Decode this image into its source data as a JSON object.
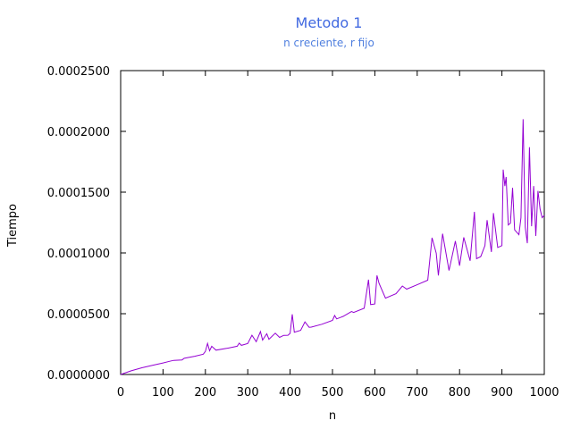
{
  "chart_data": {
    "type": "line",
    "title": "Metodo 1",
    "subtitle": "n creciente, r fijo",
    "xlabel": "n",
    "ylabel": "Tiempo",
    "xlim": [
      0,
      1000
    ],
    "ylim": [
      0,
      0.00025
    ],
    "grid": false,
    "legend": "none",
    "x_ticks": [
      0,
      100,
      200,
      300,
      400,
      500,
      600,
      700,
      800,
      900,
      1000
    ],
    "x_tick_labels": [
      "0",
      "100",
      "200",
      "300",
      "400",
      "500",
      "600",
      "700",
      "800",
      "900",
      "1000"
    ],
    "y_ticks": [
      0,
      5e-05,
      0.0001,
      0.00015,
      0.0002,
      0.00025
    ],
    "y_tick_labels": [
      "0.0000000",
      "0.0000500",
      "0.0001000",
      "0.0001500",
      "0.0002000",
      "0.0002500"
    ],
    "series_color": "#9400d3",
    "series": [
      {
        "name": "",
        "x": [
          0,
          25,
          50,
          75,
          100,
          115,
          125,
          145,
          150,
          175,
          195,
          200,
          205,
          210,
          215,
          225,
          250,
          275,
          280,
          285,
          300,
          310,
          320,
          330,
          335,
          345,
          350,
          365,
          375,
          385,
          395,
          400,
          405,
          410,
          425,
          435,
          445,
          450,
          475,
          500,
          505,
          510,
          525,
          545,
          550,
          575,
          585,
          590,
          600,
          605,
          610,
          625,
          650,
          665,
          675,
          700,
          725,
          735,
          745,
          750,
          760,
          775,
          790,
          800,
          810,
          825,
          835,
          840,
          850,
          860,
          865,
          875,
          880,
          890,
          900,
          903,
          907,
          910,
          915,
          920,
          925,
          930,
          940,
          945,
          950,
          955,
          960,
          965,
          970,
          975,
          980,
          985,
          990,
          995,
          1000
        ],
        "y": [
          0,
          3e-06,
          5.5e-06,
          7.5e-06,
          9.5e-06,
          1.08e-05,
          1.16e-05,
          1.2e-05,
          1.33e-05,
          1.5e-05,
          1.67e-05,
          1.9e-05,
          2.55e-05,
          1.95e-05,
          2.32e-05,
          2e-05,
          2.15e-05,
          2.32e-05,
          2.58e-05,
          2.4e-05,
          2.55e-05,
          3.23e-05,
          2.7e-05,
          3.53e-05,
          2.83e-05,
          3.35e-05,
          2.9e-05,
          3.4e-05,
          3.05e-05,
          3.22e-05,
          3.23e-05,
          3.38e-05,
          4.95e-05,
          3.48e-05,
          3.63e-05,
          4.32e-05,
          3.88e-05,
          3.9e-05,
          4.13e-05,
          4.45e-05,
          4.85e-05,
          4.57e-05,
          4.78e-05,
          5.18e-05,
          5.1e-05,
          5.45e-05,
          7.8e-05,
          5.75e-05,
          5.8e-05,
          8.15e-05,
          7.5e-05,
          6.28e-05,
          6.65e-05,
          7.28e-05,
          7.02e-05,
          7.38e-05,
          7.76e-05,
          0.0001125,
          9.98e-05,
          8.15e-05,
          0.0001158,
          8.55e-05,
          0.0001098,
          8.95e-05,
          0.0001128,
          9.35e-05,
          0.0001338,
          9.52e-05,
          9.7e-05,
          0.000106,
          0.000127,
          0.0001008,
          0.0001328,
          0.0001045,
          0.000106,
          0.0001685,
          0.000155,
          0.0001625,
          0.000123,
          0.0001245,
          0.0001535,
          0.000119,
          0.000115,
          0.000129,
          0.00021,
          0.000121,
          0.000108,
          0.000187,
          0.000122,
          0.000155,
          0.000114,
          0.000151,
          0.000136,
          0.000129,
          0.000131
        ]
      }
    ]
  }
}
